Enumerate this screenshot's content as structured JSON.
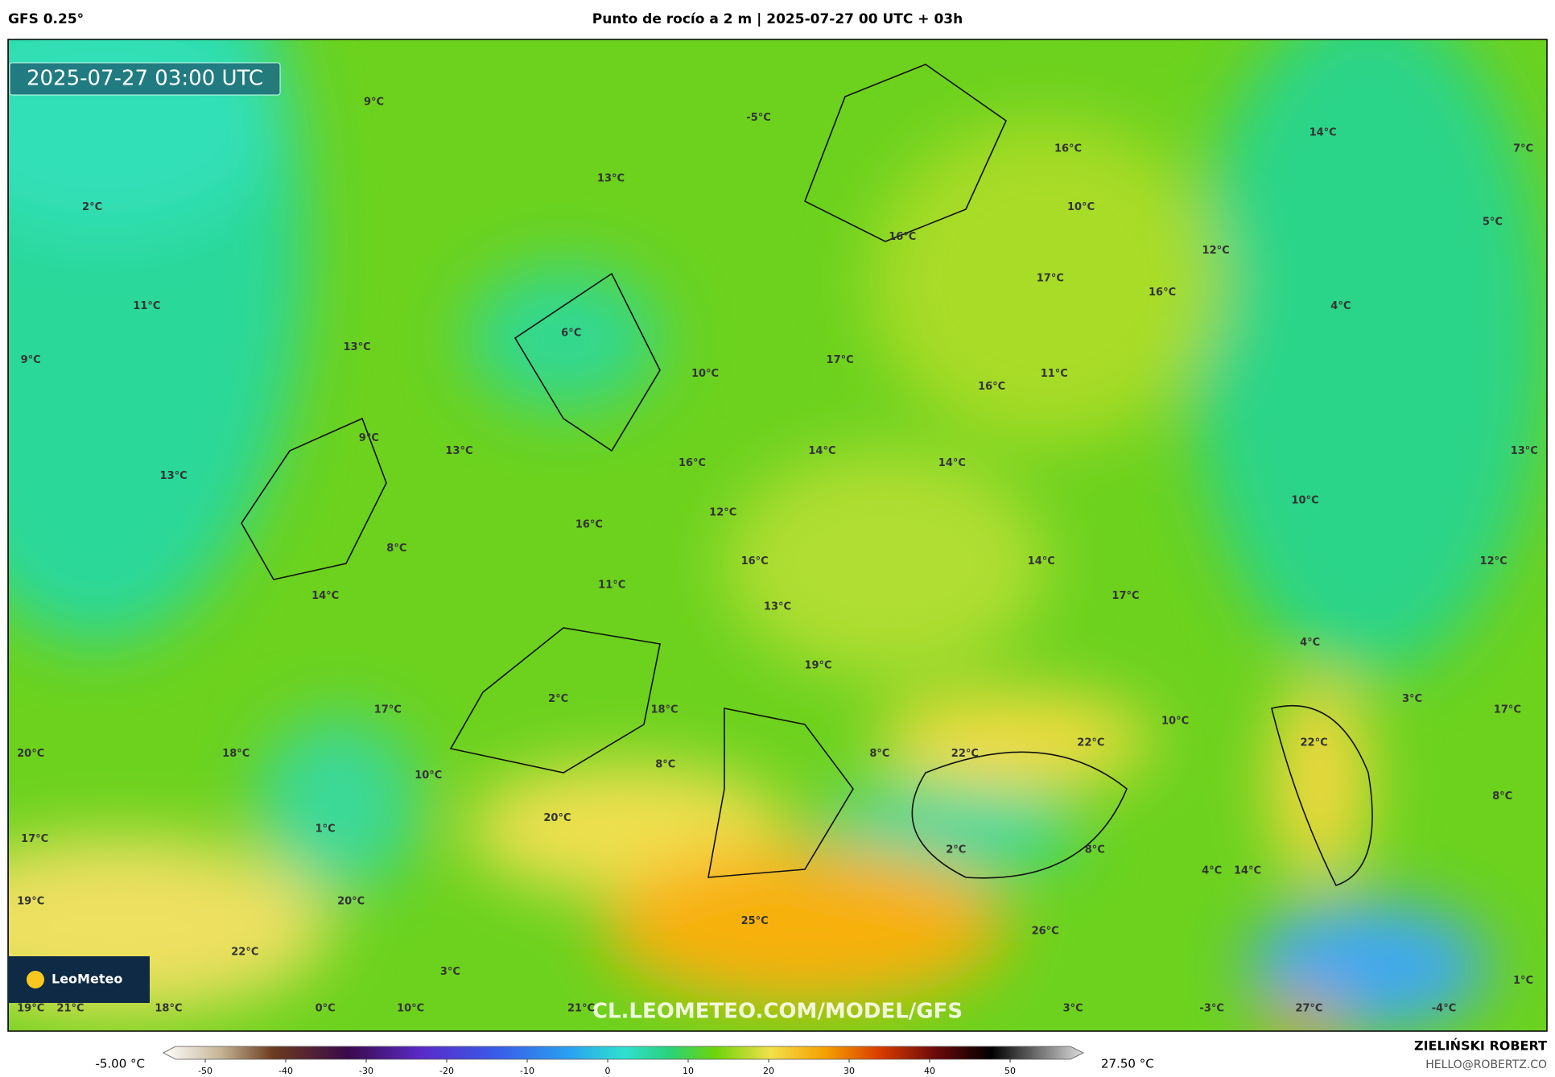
{
  "header": {
    "model": "GFS 0.25°",
    "title": "Punto de rocío a 2 m | 2025-07-27 00 UTC + 03h"
  },
  "map": {
    "timestamp": "2025-07-27 03:00 UTC",
    "watermark": "CL.LEOMETEO.COM/MODEL/GFS",
    "logo": "LeoMeteo",
    "labels": [
      "9°C",
      "-5°C",
      "13°C",
      "16°C",
      "14°C",
      "7°C",
      "2°C",
      "10°C",
      "16°C",
      "5°C",
      "12°C",
      "17°C",
      "16°C",
      "11°C",
      "4°C",
      "6°C",
      "13°C",
      "9°C",
      "17°C",
      "10°C",
      "11°C",
      "16°C",
      "9°C",
      "13°C",
      "14°C",
      "14°C",
      "16°C",
      "13°C",
      "13°C",
      "10°C",
      "12°C",
      "16°C",
      "8°C",
      "16°C",
      "14°C",
      "12°C",
      "11°C",
      "14°C",
      "17°C",
      "13°C",
      "4°C",
      "19°C",
      "2°C",
      "3°C",
      "18°C",
      "17°C",
      "17°C",
      "10°C",
      "22°C",
      "22°C",
      "20°C",
      "18°C",
      "22°C",
      "8°C",
      "8°C",
      "10°C",
      "8°C",
      "20°C",
      "1°C",
      "17°C",
      "2°C",
      "8°C",
      "4°C",
      "14°C",
      "20°C",
      "19°C",
      "25°C",
      "26°C",
      "22°C",
      "3°C",
      "1°C",
      "19°C",
      "21°C",
      "18°C",
      "0°C",
      "10°C",
      "21°C",
      "3°C",
      "-3°C",
      "27°C",
      "-4°C"
    ]
  },
  "legend": {
    "min_label": "-5.00 °C",
    "max_label": "27.50 °C",
    "ticks": [
      -50,
      -40,
      -30,
      -20,
      -10,
      0,
      10,
      20,
      30,
      40,
      50
    ]
  },
  "footer": {
    "author": "ZIELIŃSKI ROBERT",
    "email": "HELLO@ROBERTZ.CO"
  }
}
